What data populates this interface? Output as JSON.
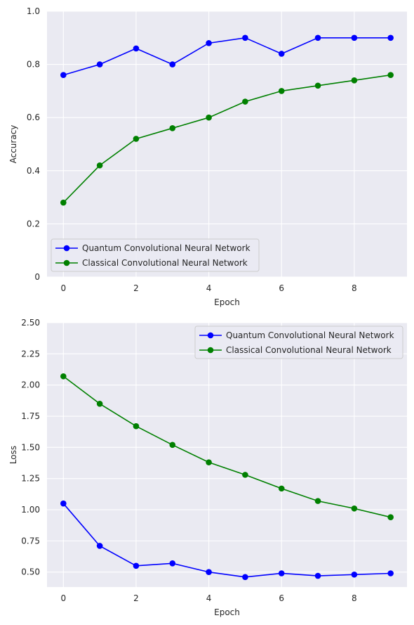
{
  "chart_data": [
    {
      "type": "line",
      "xlabel": "Epoch",
      "ylabel": "Accuracy",
      "x": [
        0,
        1,
        2,
        3,
        4,
        5,
        6,
        7,
        8,
        9
      ],
      "xlim": [
        -0.45,
        9.45
      ],
      "ylim": [
        0,
        1.0
      ],
      "xticks": [
        "0",
        "2",
        "4",
        "6",
        "8"
      ],
      "yticks": [
        "0",
        "0.2",
        "0.4",
        "0.6",
        "0.8",
        "1.0"
      ],
      "grid": true,
      "legend": "lower-left",
      "series": [
        {
          "name": "Quantum Convolutional Neural Network",
          "color": "#0000ff",
          "marker": "circle",
          "values": [
            0.76,
            0.8,
            0.86,
            0.8,
            0.88,
            0.9,
            0.84,
            0.9,
            0.9,
            0.9
          ]
        },
        {
          "name": "Classical Convolutional Neural Network",
          "color": "#008000",
          "marker": "circle",
          "values": [
            0.28,
            0.42,
            0.52,
            0.56,
            0.6,
            0.66,
            0.7,
            0.72,
            0.74,
            0.76
          ]
        }
      ]
    },
    {
      "type": "line",
      "xlabel": "Epoch",
      "ylabel": "Loss",
      "x": [
        0,
        1,
        2,
        3,
        4,
        5,
        6,
        7,
        8,
        9
      ],
      "xlim": [
        -0.45,
        9.45
      ],
      "ylim": [
        0.38,
        2.5
      ],
      "xticks": [
        "0",
        "2",
        "4",
        "6",
        "8"
      ],
      "yticks": [
        "0.50",
        "0.75",
        "1.00",
        "1.25",
        "1.50",
        "1.75",
        "2.00",
        "2.25",
        "2.50"
      ],
      "grid": true,
      "legend": "top-right",
      "series": [
        {
          "name": "Quantum Convolutional Neural Network",
          "color": "#0000ff",
          "marker": "circle",
          "values": [
            1.05,
            0.71,
            0.55,
            0.57,
            0.5,
            0.46,
            0.49,
            0.47,
            0.48,
            0.49
          ]
        },
        {
          "name": "Classical Convolutional Neural Network",
          "color": "#008000",
          "marker": "circle",
          "values": [
            2.07,
            1.85,
            1.67,
            1.52,
            1.38,
            1.28,
            1.17,
            1.07,
            1.01,
            0.94
          ]
        }
      ]
    }
  ]
}
